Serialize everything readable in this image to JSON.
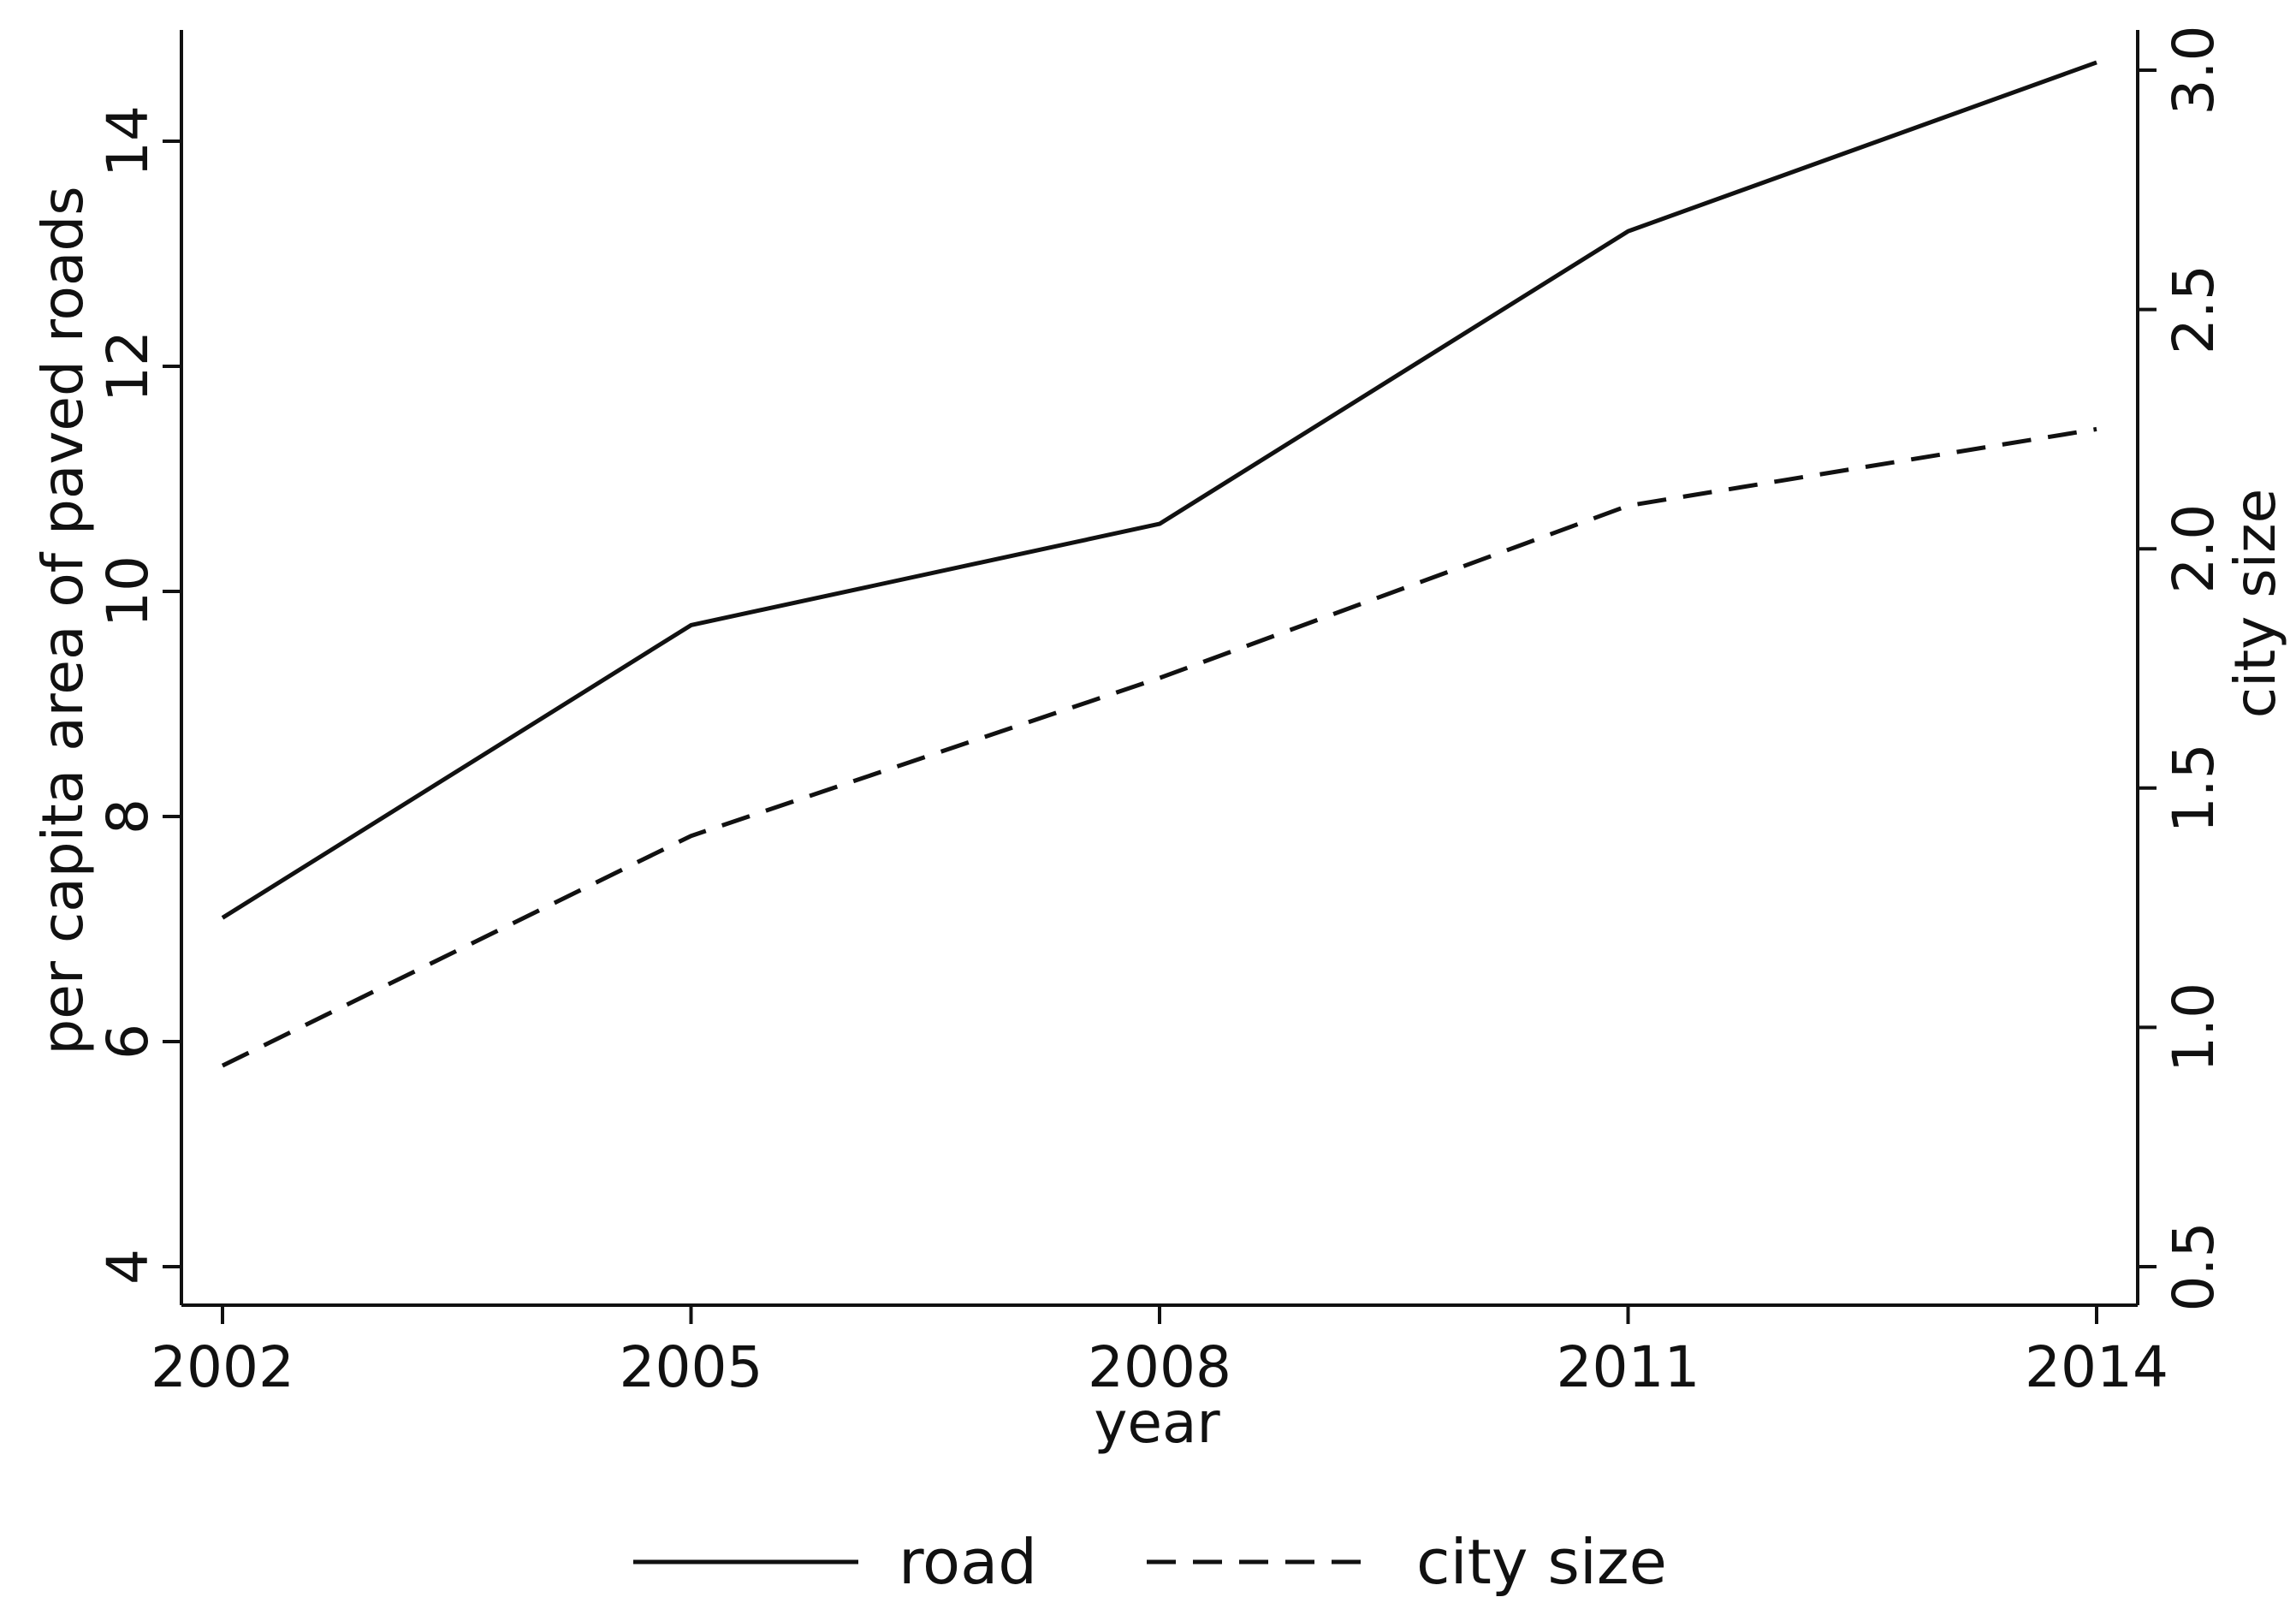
{
  "chart_data": {
    "type": "line",
    "x": [
      2002,
      2005,
      2008,
      2011,
      2014
    ],
    "xlabel": "year",
    "ylabel_left": "per capita area of paved roads",
    "ylabel_right": "city size",
    "ylim_left": [
      4,
      15
    ],
    "ylim_right": [
      0.5,
      3.08
    ],
    "yticks_left": [
      4,
      6,
      8,
      10,
      12,
      14
    ],
    "yticks_right": [
      "0.5",
      "1.0",
      "1.5",
      "2.0",
      "2.5",
      "3.0"
    ],
    "xticks": [
      "2002",
      "2005",
      "2008",
      "2011",
      "2014"
    ],
    "series": [
      {
        "name": "road",
        "axis": "left",
        "style": "solid",
        "values": [
          7.1,
          9.7,
          10.6,
          13.2,
          14.7
        ]
      },
      {
        "name": "city size",
        "axis": "right",
        "style": "dashed",
        "values": [
          0.92,
          1.4,
          1.73,
          2.09,
          2.25
        ]
      }
    ],
    "legend_position": "bottom",
    "grid": false,
    "colors": {
      "line": "#111111",
      "background": "#ffffff"
    }
  }
}
